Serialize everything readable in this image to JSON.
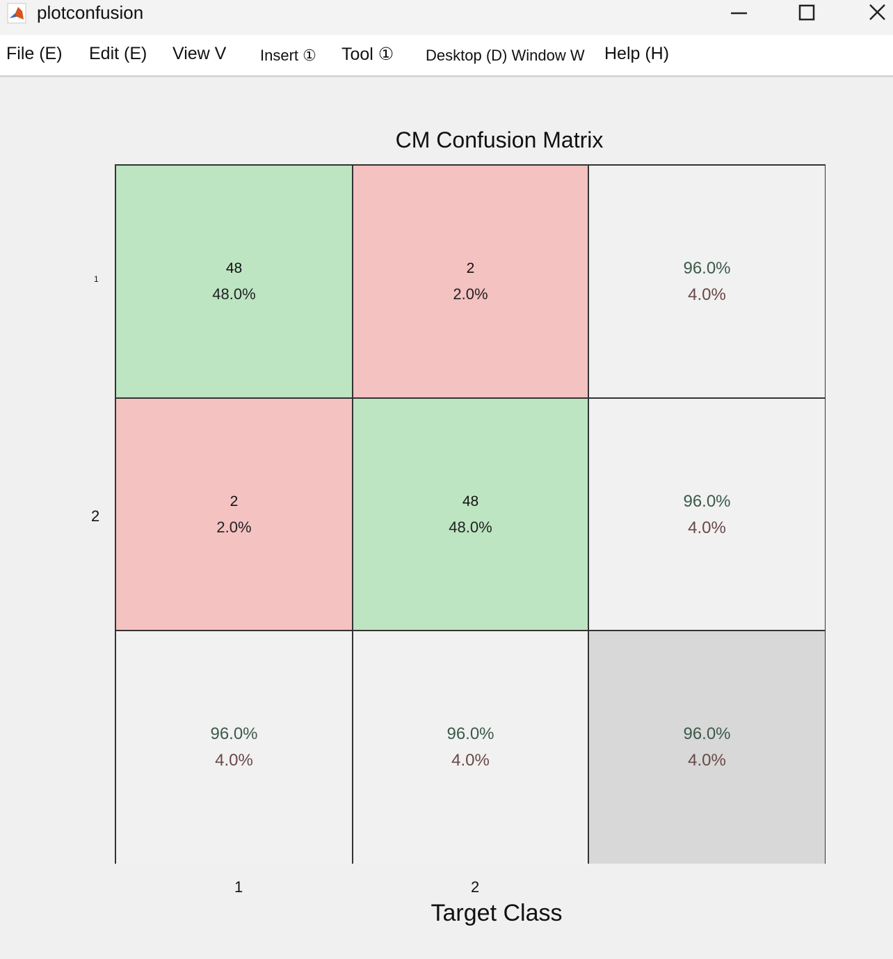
{
  "window": {
    "title": "plotconfusion"
  },
  "menu": {
    "items": [
      "File (E)",
      "Edit (E)",
      "View V",
      "Insert ①",
      "Tool ①",
      "Desktop (D) Window W",
      "Help (H)"
    ]
  },
  "chart_data": {
    "type": "heatmap",
    "title": "CM Confusion Matrix",
    "xlabel": "Target Class",
    "ylabel": "",
    "x_tick_labels": [
      "1",
      "2"
    ],
    "y_tick_labels": [
      "1",
      "2"
    ],
    "cells": [
      [
        {
          "count": "48",
          "percent": "48.0%",
          "kind": "green"
        },
        {
          "count": "2",
          "percent": "2.0%",
          "kind": "red"
        },
        {
          "count": "96.0%",
          "percent": "4.0%",
          "kind": "white"
        }
      ],
      [
        {
          "count": "2",
          "percent": "2.0%",
          "kind": "red"
        },
        {
          "count": "48",
          "percent": "48.0%",
          "kind": "green"
        },
        {
          "count": "96.0%",
          "percent": "4.0%",
          "kind": "white"
        }
      ],
      [
        {
          "count": "96.0%",
          "percent": "4.0%",
          "kind": "white"
        },
        {
          "count": "96.0%",
          "percent": "4.0%",
          "kind": "white"
        },
        {
          "count": "96.0%",
          "percent": "4.0%",
          "kind": "gray"
        }
      ]
    ],
    "colors": {
      "correct": "#bde5c2",
      "incorrect": "#f4c2c1",
      "summary": "#f1f1f1",
      "overall": "#d8d8d8"
    }
  },
  "icons": {
    "app": "matlab-figure-icon",
    "minimize": "minimize-icon",
    "maximize": "maximize-icon",
    "close": "close-icon"
  }
}
